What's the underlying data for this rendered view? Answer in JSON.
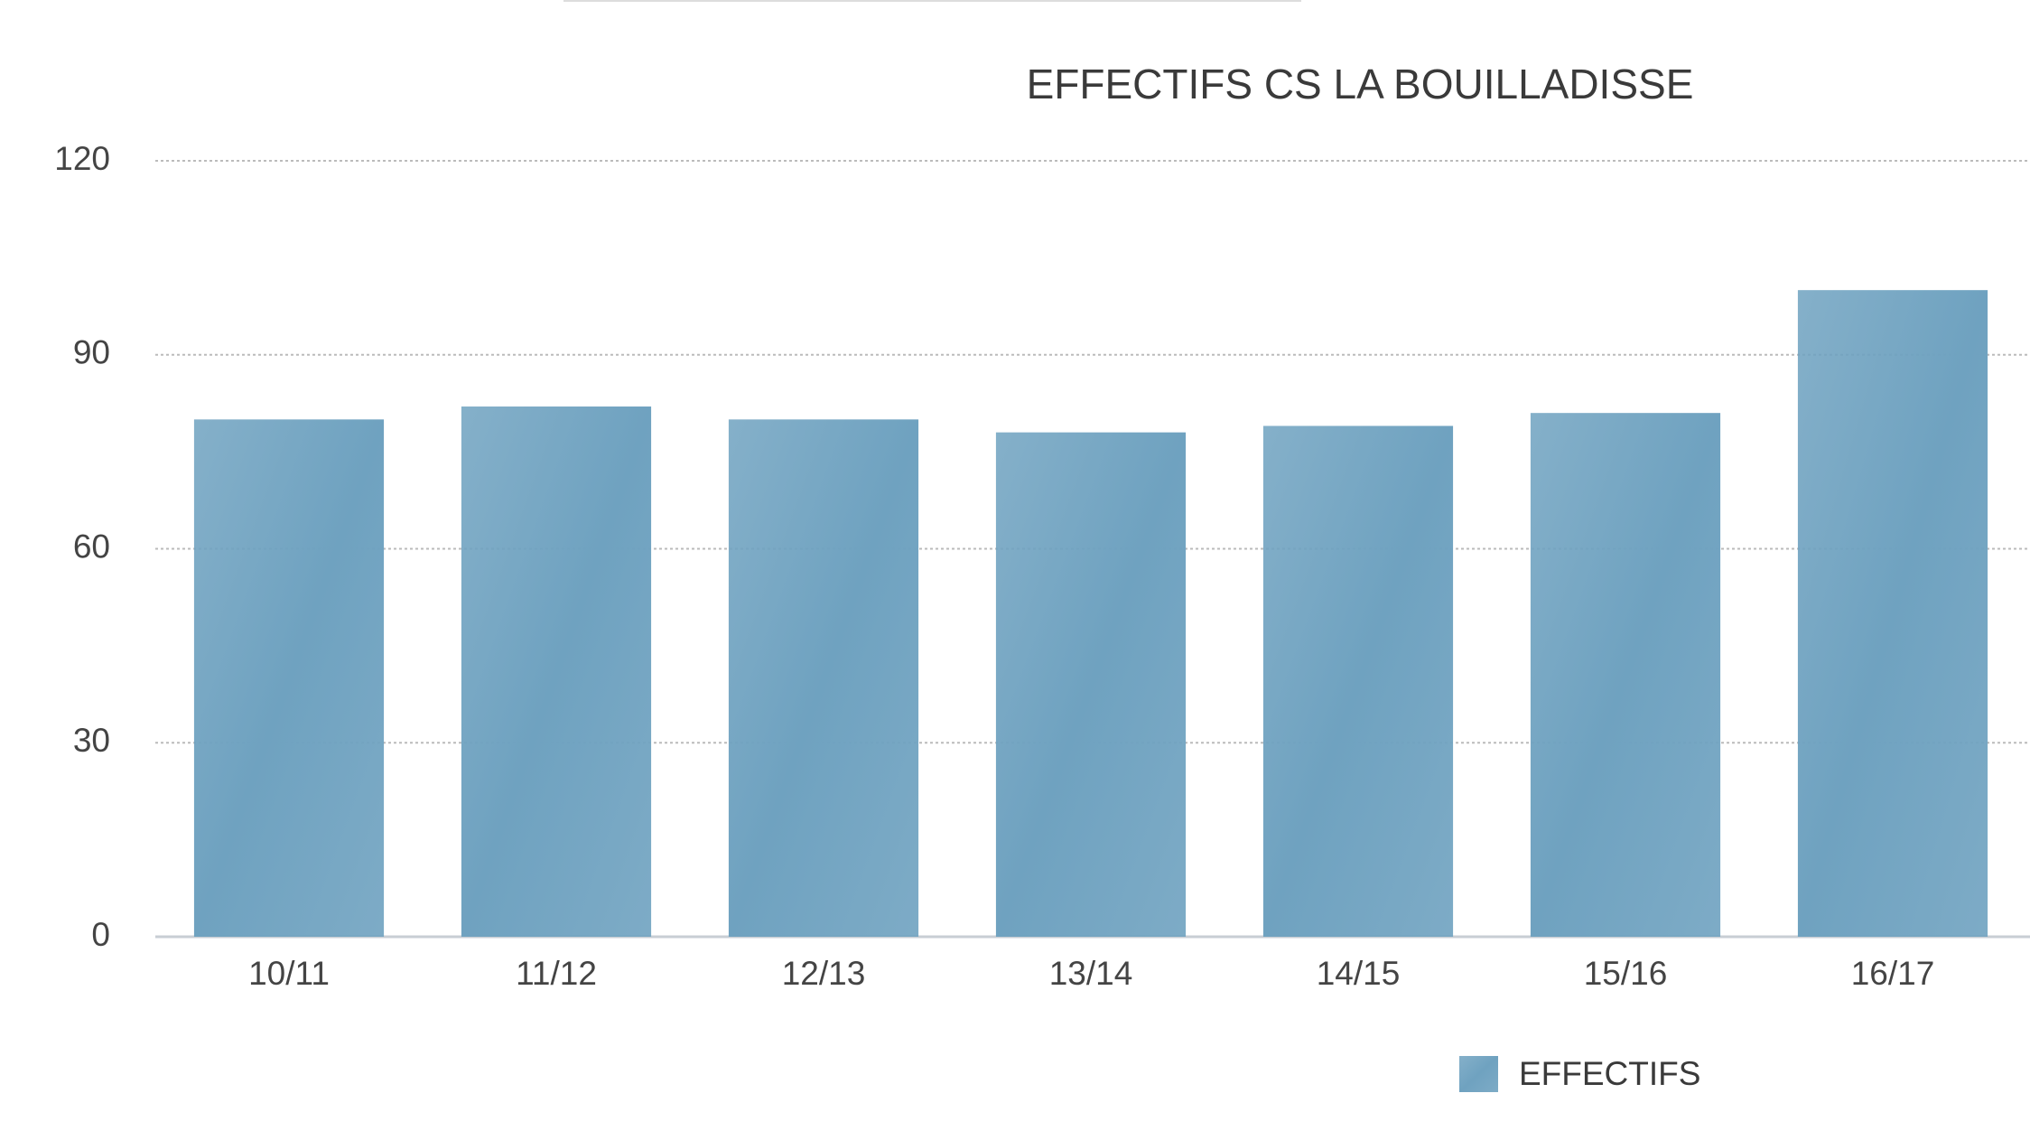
{
  "chart_data": {
    "type": "bar",
    "title": "EFFECTIFS CS LA BOUILLADISSE",
    "categories": [
      "10/11",
      "11/12",
      "12/13",
      "13/14",
      "14/15",
      "15/16",
      "16/17"
    ],
    "series": [
      {
        "name": "EFFECTIFS",
        "color": "#6fa2c0",
        "values": [
          80,
          82,
          80,
          78,
          79,
          81,
          100
        ]
      }
    ],
    "ylim": [
      0,
      120
    ],
    "yticks": [
      0,
      30,
      60,
      90,
      120
    ],
    "grid": true,
    "legend": "bottom"
  }
}
